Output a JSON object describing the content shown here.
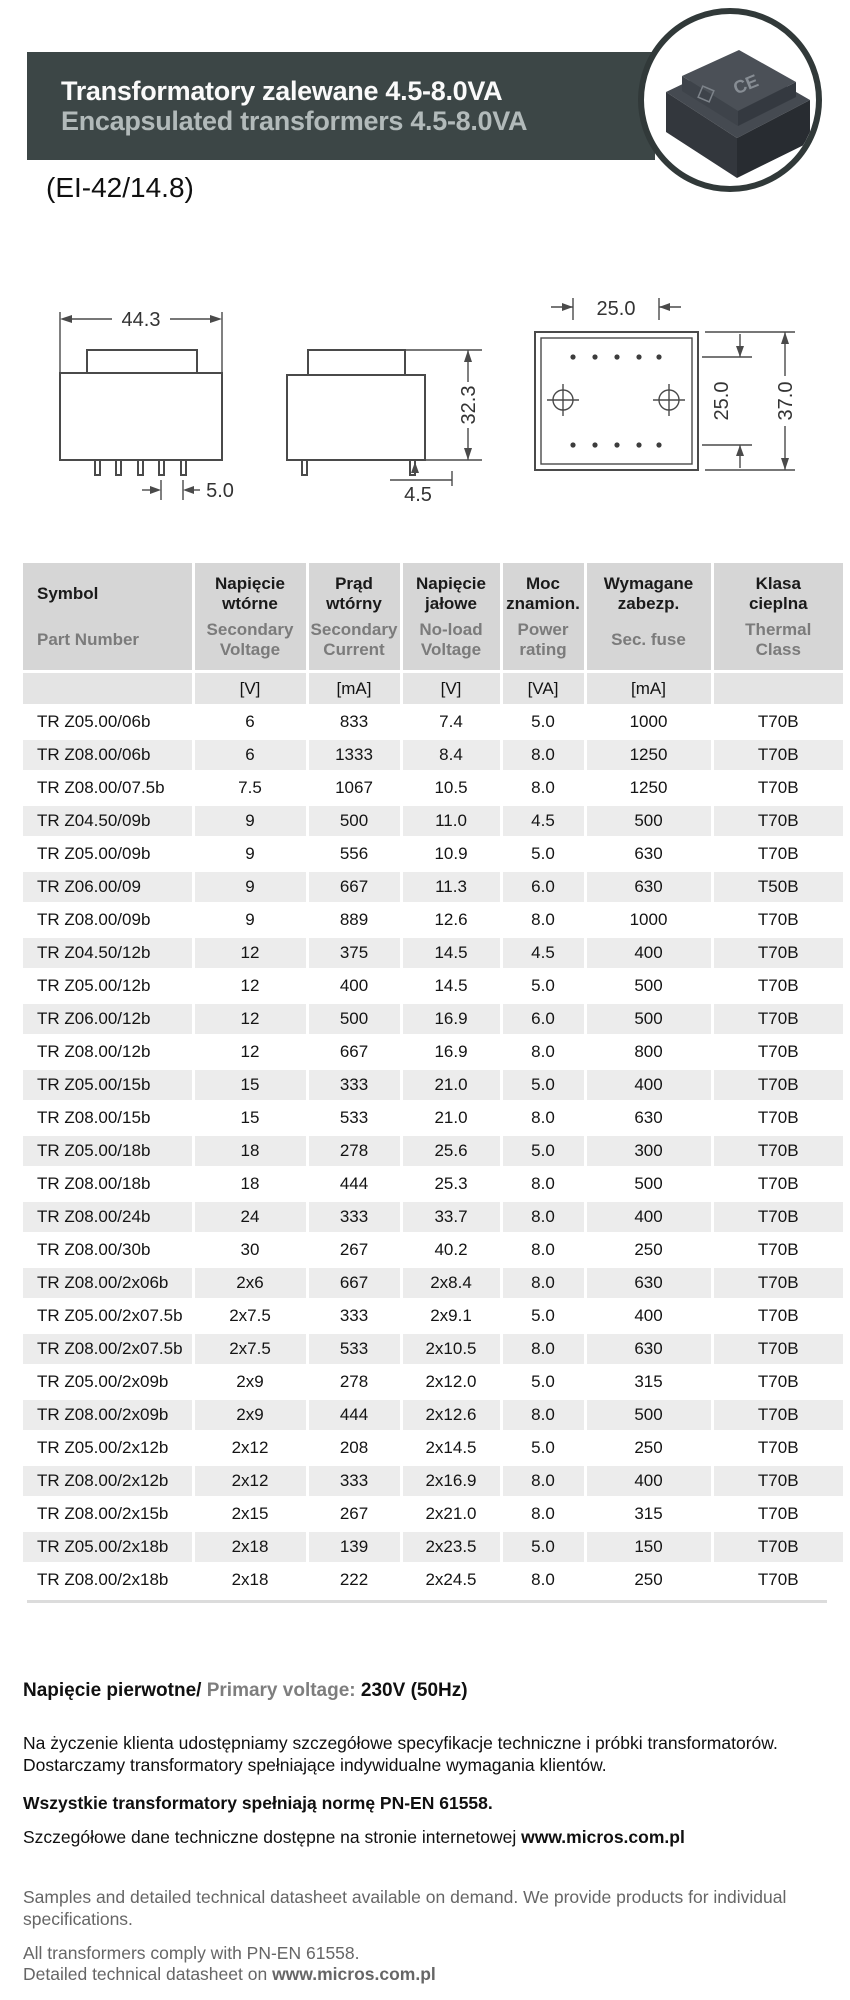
{
  "header": {
    "title_pl": "Transformatory zalewane 4.5-8.0VA",
    "title_en": "Encapsulated transformers 4.5-8.0VA",
    "core_type": "(EI-42/14.8)",
    "photo_mark": "CE"
  },
  "drawings": {
    "front": {
      "width": "44.3",
      "pin_pitch": "5.0"
    },
    "side": {
      "height": "32.3",
      "pin_offset": "4.5"
    },
    "top": {
      "width": "25.0",
      "pin_row_spacing": "25.0",
      "depth": "37.0"
    }
  },
  "table": {
    "columns": [
      {
        "pl": "Symbol",
        "en": "Part Number",
        "unit": ""
      },
      {
        "pl": "Napięcie\nwtórne",
        "en": "Secondary\nVoltage",
        "unit": "[V]"
      },
      {
        "pl": "Prąd\nwtórny",
        "en": "Secondary\nCurrent",
        "unit": "[mA]"
      },
      {
        "pl": "Napięcie\njałowe",
        "en": "No-load\nVoltage",
        "unit": "[V]"
      },
      {
        "pl": "Moc\nznamion.",
        "en": "Power\nrating",
        "unit": "[VA]"
      },
      {
        "pl": "Wymagane\nzabezp.",
        "en": "Sec. fuse",
        "unit": "[mA]"
      },
      {
        "pl": "Klasa\ncieplna",
        "en": "Thermal\nClass",
        "unit": ""
      }
    ],
    "rows": [
      [
        "TR Z05.00/06b",
        "6",
        "833",
        "7.4",
        "5.0",
        "1000",
        "T70B"
      ],
      [
        "TR Z08.00/06b",
        "6",
        "1333",
        "8.4",
        "8.0",
        "1250",
        "T70B"
      ],
      [
        "TR Z08.00/07.5b",
        "7.5",
        "1067",
        "10.5",
        "8.0",
        "1250",
        "T70B"
      ],
      [
        "TR Z04.50/09b",
        "9",
        "500",
        "11.0",
        "4.5",
        "500",
        "T70B"
      ],
      [
        "TR Z05.00/09b",
        "9",
        "556",
        "10.9",
        "5.0",
        "630",
        "T70B"
      ],
      [
        "TR Z06.00/09",
        "9",
        "667",
        "11.3",
        "6.0",
        "630",
        "T50B"
      ],
      [
        "TR Z08.00/09b",
        "9",
        "889",
        "12.6",
        "8.0",
        "1000",
        "T70B"
      ],
      [
        "TR Z04.50/12b",
        "12",
        "375",
        "14.5",
        "4.5",
        "400",
        "T70B"
      ],
      [
        "TR Z05.00/12b",
        "12",
        "400",
        "14.5",
        "5.0",
        "500",
        "T70B"
      ],
      [
        "TR Z06.00/12b",
        "12",
        "500",
        "16.9",
        "6.0",
        "500",
        "T70B"
      ],
      [
        "TR Z08.00/12b",
        "12",
        "667",
        "16.9",
        "8.0",
        "800",
        "T70B"
      ],
      [
        "TR Z05.00/15b",
        "15",
        "333",
        "21.0",
        "5.0",
        "400",
        "T70B"
      ],
      [
        "TR Z08.00/15b",
        "15",
        "533",
        "21.0",
        "8.0",
        "630",
        "T70B"
      ],
      [
        "TR Z05.00/18b",
        "18",
        "278",
        "25.6",
        "5.0",
        "300",
        "T70B"
      ],
      [
        "TR Z08.00/18b",
        "18",
        "444",
        "25.3",
        "8.0",
        "500",
        "T70B"
      ],
      [
        "TR Z08.00/24b",
        "24",
        "333",
        "33.7",
        "8.0",
        "400",
        "T70B"
      ],
      [
        "TR Z08.00/30b",
        "30",
        "267",
        "40.2",
        "8.0",
        "250",
        "T70B"
      ],
      [
        "TR Z08.00/2x06b",
        "2x6",
        "667",
        "2x8.4",
        "8.0",
        "630",
        "T70B"
      ],
      [
        "TR Z05.00/2x07.5b",
        "2x7.5",
        "333",
        "2x9.1",
        "5.0",
        "400",
        "T70B"
      ],
      [
        "TR Z08.00/2x07.5b",
        "2x7.5",
        "533",
        "2x10.5",
        "8.0",
        "630",
        "T70B"
      ],
      [
        "TR Z05.00/2x09b",
        "2x9",
        "278",
        "2x12.0",
        "5.0",
        "315",
        "T70B"
      ],
      [
        "TR Z08.00/2x09b",
        "2x9",
        "444",
        "2x12.6",
        "8.0",
        "500",
        "T70B"
      ],
      [
        "TR Z05.00/2x12b",
        "2x12",
        "208",
        "2x14.5",
        "5.0",
        "250",
        "T70B"
      ],
      [
        "TR Z08.00/2x12b",
        "2x12",
        "333",
        "2x16.9",
        "8.0",
        "400",
        "T70B"
      ],
      [
        "TR Z08.00/2x15b",
        "2x15",
        "267",
        "2x21.0",
        "8.0",
        "315",
        "T70B"
      ],
      [
        "TR Z05.00/2x18b",
        "2x18",
        "139",
        "2x23.5",
        "5.0",
        "150",
        "T70B"
      ],
      [
        "TR Z08.00/2x18b",
        "2x18",
        "222",
        "2x24.5",
        "8.0",
        "250",
        "T70B"
      ]
    ]
  },
  "footer": {
    "primary": {
      "pl": "Napięcie pierwotne/",
      "en": "Primary voltage:",
      "value": "230V (50Hz)"
    },
    "pl_paragraph": [
      "Na życzenie klienta udostępniamy szczegółowe specyfikacje techniczne i próbki transformatorów.",
      "Dostarczamy transformatory spełniające indywidualne wymagania klientów."
    ],
    "pl_norm": "Wszystkie transformatory spełniają normę PN-EN 61558.",
    "pl_web_prefix": "Szczegółowe dane techniczne dostępne na stronie internetowej ",
    "website": "www.micros.com.pl",
    "en_paragraph": [
      "Samples and detailed technical datasheet available on demand. We provide products for individual",
      "specifications."
    ],
    "en_norm": "All transformers comply with PN-EN 61558.",
    "en_web_prefix": "Detailed technical datasheet on "
  },
  "colors": {
    "header_bar": "#3c4646",
    "title": "#fafafa",
    "subtitle": "#b2baba",
    "table_header_bg": "#d6d6d6",
    "units_row_bg": "#e4e4e4",
    "alt_row_bg": "#ececec",
    "gray_text": "#7b7b7b"
  }
}
